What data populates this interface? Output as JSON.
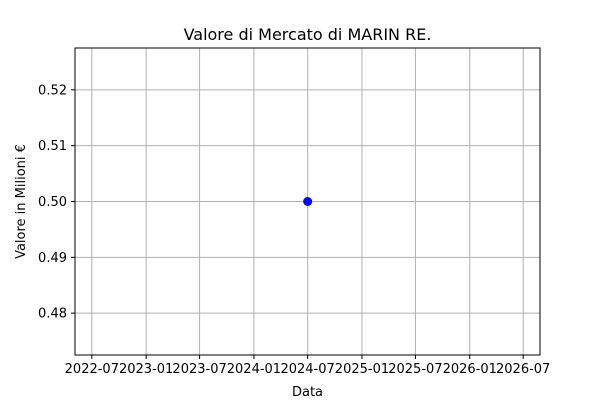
{
  "chart_data": {
    "type": "scatter",
    "title": "Valore di Mercato di MARIN RE.",
    "xlabel": "Data",
    "ylabel": "Valore in Milioni €",
    "x_ticks": [
      "2022-07",
      "2023-01",
      "2023-07",
      "2024-01",
      "2024-07",
      "2025-01",
      "2025-07",
      "2026-01",
      "2026-07"
    ],
    "y_ticks": [
      "0.48",
      "0.49",
      "0.50",
      "0.51",
      "0.52"
    ],
    "xlim": [
      "2022-05-05",
      "2026-08-27"
    ],
    "ylim": [
      0.4725,
      0.5275
    ],
    "grid": true,
    "marker_color": "#0000ff",
    "points": [
      {
        "x": "2024-07-01",
        "y": 0.5
      }
    ]
  }
}
